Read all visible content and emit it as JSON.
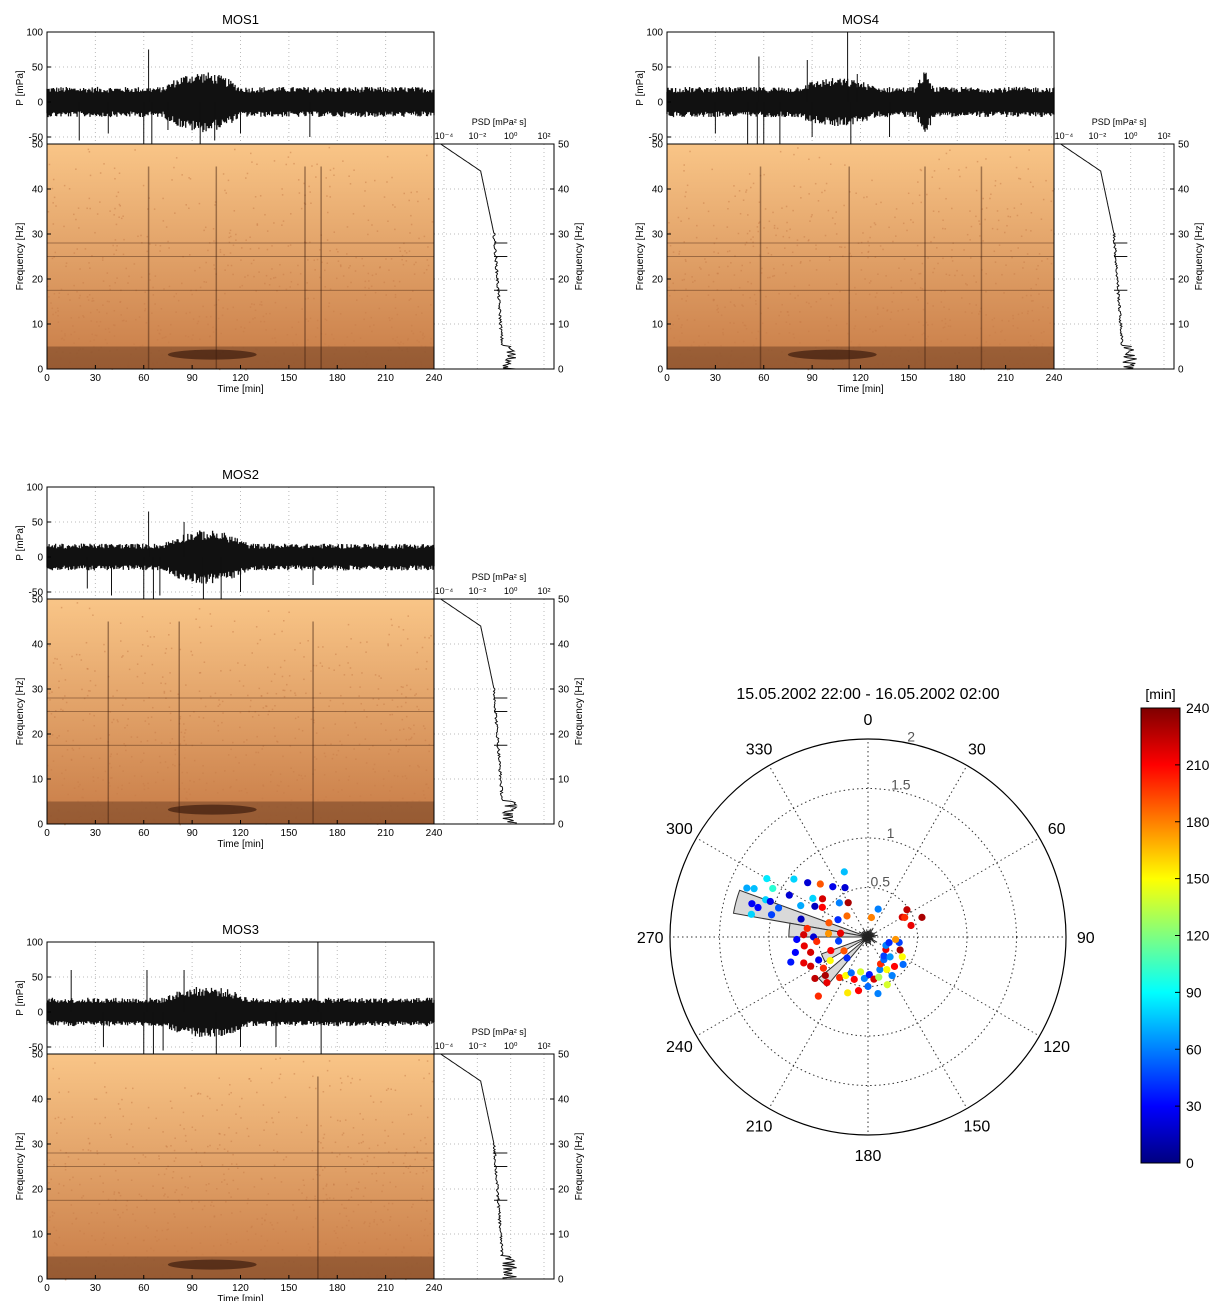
{
  "chart_data": [
    {
      "type": "line",
      "title": "MOS1",
      "waveform": {
        "ylabel": "P [mPa]",
        "ylim": [
          -60,
          100
        ],
        "yticks": [
          100,
          50,
          0,
          -50
        ],
        "amplitude": 18,
        "bursts": [
          [
            72,
            120,
            2.0
          ]
        ],
        "spikes": [
          [
            20,
            -55
          ],
          [
            38,
            -45
          ],
          [
            60,
            -90
          ],
          [
            63,
            75
          ],
          [
            65,
            -90
          ],
          [
            75,
            -40
          ],
          [
            95,
            -60
          ],
          [
            104,
            -55
          ],
          [
            120,
            -45
          ],
          [
            163,
            -50
          ]
        ]
      },
      "spectrogram": {
        "xlabel": "Time [min]",
        "ylabel": "Frequency [Hz]",
        "xlim": [
          0,
          240
        ],
        "ylim": [
          0,
          50
        ],
        "xticks": [
          0,
          30,
          60,
          90,
          120,
          150,
          180,
          210,
          240
        ],
        "yticks": [
          0,
          10,
          20,
          30,
          40,
          50
        ],
        "colors": [
          "#f9c587",
          "#c87c47",
          "#3d1d0e"
        ],
        "lines_hz": [
          28,
          25,
          17.5
        ],
        "vertical_min": [
          63,
          105,
          160,
          170
        ],
        "dark_band": [
          75,
          130
        ]
      },
      "psd": {
        "xlabel": "PSD [mPa² s]",
        "ylabel": "Frequency [Hz]",
        "xticks": [
          "10⁻⁴",
          "10⁻²",
          "10⁰",
          "10²"
        ],
        "yticks": [
          0,
          10,
          20,
          30,
          40,
          50
        ]
      }
    },
    {
      "type": "line",
      "title": "MOS4",
      "waveform": {
        "ylabel": "P [mPa]",
        "ylim": [
          -60,
          100
        ],
        "yticks": [
          100,
          50,
          0,
          -50
        ],
        "amplitude": 18,
        "bursts": [
          [
            80,
            130,
            1.6
          ],
          [
            155,
            165,
            2.0
          ]
        ],
        "spikes": [
          [
            30,
            -45
          ],
          [
            50,
            -80
          ],
          [
            56,
            -90
          ],
          [
            57,
            65
          ],
          [
            60,
            -85
          ],
          [
            70,
            -60
          ],
          [
            87,
            60
          ],
          [
            90,
            -50
          ],
          [
            112,
            100
          ],
          [
            114,
            -90
          ],
          [
            118,
            40
          ],
          [
            138,
            -50
          ],
          [
            160,
            40
          ]
        ]
      },
      "spectrogram": {
        "xlabel": "Time [min]",
        "ylabel": "Frequency [Hz]",
        "xlim": [
          0,
          240
        ],
        "ylim": [
          0,
          50
        ],
        "xticks": [
          0,
          30,
          60,
          90,
          120,
          150,
          180,
          210,
          240
        ],
        "yticks": [
          0,
          10,
          20,
          30,
          40,
          50
        ],
        "colors": [
          "#f9c587",
          "#c87c47",
          "#3d1d0e"
        ],
        "lines_hz": [
          28,
          25,
          17.5
        ],
        "vertical_min": [
          58,
          113,
          160,
          195
        ],
        "dark_band": [
          75,
          130
        ]
      },
      "psd": {
        "xlabel": "PSD [mPa² s]",
        "ylabel": "Frequency [Hz]",
        "xticks": [
          "10⁻⁴",
          "10⁻²",
          "10⁰",
          "10²"
        ],
        "yticks": [
          0,
          10,
          20,
          30,
          40,
          50
        ]
      }
    },
    {
      "type": "line",
      "title": "MOS2",
      "waveform": {
        "ylabel": "P [mPa]",
        "ylim": [
          -60,
          100
        ],
        "yticks": [
          100,
          50,
          0,
          -50
        ],
        "amplitude": 16,
        "bursts": [
          [
            72,
            125,
            2.0
          ]
        ],
        "spikes": [
          [
            25,
            -45
          ],
          [
            40,
            -55
          ],
          [
            60,
            -90
          ],
          [
            63,
            65
          ],
          [
            66,
            -90
          ],
          [
            70,
            -55
          ],
          [
            85,
            50
          ],
          [
            97,
            -60
          ],
          [
            108,
            -90
          ],
          [
            120,
            -50
          ],
          [
            165,
            -40
          ]
        ]
      },
      "spectrogram": {
        "xlabel": "Time [min]",
        "ylabel": "Frequency [Hz]",
        "xlim": [
          0,
          240
        ],
        "ylim": [
          0,
          50
        ],
        "xticks": [
          0,
          30,
          60,
          90,
          120,
          150,
          180,
          210,
          240
        ],
        "yticks": [
          0,
          10,
          20,
          30,
          40,
          50
        ],
        "colors": [
          "#f9c587",
          "#c87c47",
          "#3d1d0e"
        ],
        "lines_hz": [
          28,
          25,
          17.5
        ],
        "vertical_min": [
          38,
          82,
          165
        ],
        "dark_band": [
          75,
          130
        ]
      },
      "psd": {
        "xlabel": "PSD [mPa² s]",
        "ylabel": "Frequency [Hz]",
        "xticks": [
          "10⁻⁴",
          "10⁻²",
          "10⁰",
          "10²"
        ],
        "yticks": [
          0,
          10,
          20,
          30,
          40,
          50
        ]
      }
    },
    {
      "type": "line",
      "title": "MOS3",
      "waveform": {
        "ylabel": "P [mPa]",
        "ylim": [
          -60,
          100
        ],
        "yticks": [
          100,
          50,
          0,
          -50
        ],
        "amplitude": 17,
        "bursts": [
          [
            72,
            125,
            1.8
          ]
        ],
        "spikes": [
          [
            15,
            60
          ],
          [
            35,
            -50
          ],
          [
            60,
            -90
          ],
          [
            62,
            60
          ],
          [
            66,
            -90
          ],
          [
            72,
            -55
          ],
          [
            85,
            60
          ],
          [
            105,
            -60
          ],
          [
            120,
            -50
          ],
          [
            142,
            -50
          ],
          [
            168,
            100
          ],
          [
            170,
            -90
          ]
        ]
      },
      "spectrogram": {
        "xlabel": "Time [min]",
        "ylabel": "Frequency [Hz]",
        "xlim": [
          0,
          240
        ],
        "ylim": [
          0,
          50
        ],
        "xticks": [
          0,
          30,
          60,
          90,
          120,
          150,
          180,
          210,
          240
        ],
        "yticks": [
          0,
          10,
          20,
          30,
          40,
          50
        ],
        "colors": [
          "#f9c587",
          "#c87c47",
          "#3d1d0e"
        ],
        "lines_hz": [
          28,
          25,
          17.5
        ],
        "vertical_min": [
          168
        ],
        "dark_band": [
          75,
          130
        ]
      },
      "psd": {
        "xlabel": "PSD [mPa² s]",
        "ylabel": "Frequency [Hz]",
        "xticks": [
          "10⁻⁴",
          "10⁻²",
          "10⁰",
          "10²"
        ],
        "yticks": [
          0,
          10,
          20,
          30,
          40,
          50
        ]
      }
    },
    {
      "type": "scatter",
      "subtype": "polar",
      "title": "15.05.2002 22:00  -  16.05.2002 02:00",
      "angle_ticks": [
        "0",
        "30",
        "60",
        "90",
        "120",
        "150",
        "180",
        "210",
        "240",
        "270",
        "300",
        "330"
      ],
      "radial_ticks": [
        "0.5",
        "1",
        "1.5",
        "2"
      ],
      "rmax": 2,
      "colorbar": {
        "label": "[min]",
        "ticks": [
          "0",
          "30",
          "60",
          "90",
          "120",
          "150",
          "180",
          "210",
          "240"
        ],
        "range": [
          0,
          240
        ]
      },
      "rose_sectors": [
        {
          "theta": [
            280,
            290
          ],
          "r": 1.38
        },
        {
          "theta": [
            270,
            280
          ],
          "r": 0.8
        },
        {
          "theta": [
            240,
            250
          ],
          "r": 0.5
        },
        {
          "theta": [
            220,
            230
          ],
          "r": 0.65
        }
      ],
      "points": [
        {
          "theta": 290,
          "r": 1.1,
          "t": 80
        },
        {
          "theta": 293,
          "r": 1.25,
          "t": 75
        },
        {
          "theta": 290,
          "r": 1.05,
          "t": 25
        },
        {
          "theta": 285,
          "r": 1.15,
          "t": 30
        },
        {
          "theta": 286,
          "r": 1.22,
          "t": 28
        },
        {
          "theta": 281,
          "r": 1.2,
          "t": 80
        },
        {
          "theta": 283,
          "r": 1.0,
          "t": 45
        },
        {
          "theta": 295,
          "r": 0.75,
          "t": 70
        },
        {
          "theta": 298,
          "r": 0.9,
          "t": 20
        },
        {
          "theta": 300,
          "r": 0.62,
          "t": 15
        },
        {
          "theta": 305,
          "r": 0.68,
          "t": 80
        },
        {
          "theta": 310,
          "r": 0.6,
          "t": 220
        },
        {
          "theta": 303,
          "r": 0.55,
          "t": 210
        },
        {
          "theta": 290,
          "r": 0.42,
          "t": 190
        },
        {
          "theta": 285,
          "r": 0.7,
          "t": 15
        },
        {
          "theta": 278,
          "r": 0.62,
          "t": 200
        },
        {
          "theta": 275,
          "r": 0.4,
          "t": 175
        },
        {
          "theta": 300,
          "r": 0.35,
          "t": 40
        },
        {
          "theta": 320,
          "r": 0.45,
          "t": 60
        },
        {
          "theta": 330,
          "r": 0.4,
          "t": 230
        },
        {
          "theta": 315,
          "r": 0.3,
          "t": 185
        },
        {
          "theta": 270,
          "r": 0.55,
          "t": 20
        },
        {
          "theta": 265,
          "r": 0.52,
          "t": 200
        },
        {
          "theta": 262,
          "r": 0.65,
          "t": 215
        },
        {
          "theta": 258,
          "r": 0.75,
          "t": 30
        },
        {
          "theta": 255,
          "r": 0.6,
          "t": 220
        },
        {
          "theta": 250,
          "r": 0.4,
          "t": 210
        },
        {
          "theta": 245,
          "r": 0.55,
          "t": 25
        },
        {
          "theta": 243,
          "r": 0.65,
          "t": 220
        },
        {
          "theta": 238,
          "r": 0.45,
          "t": 150
        },
        {
          "theta": 235,
          "r": 0.55,
          "t": 200
        },
        {
          "theta": 228,
          "r": 0.58,
          "t": 230
        },
        {
          "theta": 222,
          "r": 0.62,
          "t": 215
        },
        {
          "theta": 215,
          "r": 0.5,
          "t": 200
        },
        {
          "theta": 210,
          "r": 0.45,
          "t": 150
        },
        {
          "theta": 205,
          "r": 0.4,
          "t": 55
        },
        {
          "theta": 198,
          "r": 0.45,
          "t": 210
        },
        {
          "theta": 192,
          "r": 0.36,
          "t": 140
        },
        {
          "theta": 185,
          "r": 0.42,
          "t": 60
        },
        {
          "theta": 178,
          "r": 0.38,
          "t": 35
        },
        {
          "theta": 172,
          "r": 0.43,
          "t": 220
        },
        {
          "theta": 165,
          "r": 0.42,
          "t": 130
        },
        {
          "theta": 160,
          "r": 0.35,
          "t": 60
        },
        {
          "theta": 155,
          "r": 0.3,
          "t": 200
        },
        {
          "theta": 150,
          "r": 0.38,
          "t": 150
        },
        {
          "theta": 145,
          "r": 0.28,
          "t": 55
        },
        {
          "theta": 140,
          "r": 0.25,
          "t": 45
        },
        {
          "theta": 132,
          "r": 0.3,
          "t": 65
        },
        {
          "theta": 125,
          "r": 0.22,
          "t": 215
        },
        {
          "theta": 115,
          "r": 0.2,
          "t": 60
        },
        {
          "theta": 105,
          "r": 0.22,
          "t": 40
        },
        {
          "theta": 60,
          "r": 0.4,
          "t": 220
        },
        {
          "theta": 55,
          "r": 0.48,
          "t": 225
        },
        {
          "theta": 62,
          "r": 0.42,
          "t": 200
        },
        {
          "theta": 70,
          "r": 0.58,
          "t": 230
        },
        {
          "theta": 75,
          "r": 0.45,
          "t": 215
        },
        {
          "theta": 20,
          "r": 0.3,
          "t": 60
        },
        {
          "theta": 10,
          "r": 0.2,
          "t": 180
        },
        {
          "theta": 335,
          "r": 0.55,
          "t": 20
        },
        {
          "theta": 340,
          "r": 0.7,
          "t": 75
        },
        {
          "theta": 325,
          "r": 0.62,
          "t": 25
        },
        {
          "theta": 318,
          "r": 0.72,
          "t": 190
        },
        {
          "theta": 312,
          "r": 0.82,
          "t": 20
        },
        {
          "theta": 308,
          "r": 0.95,
          "t": 80
        },
        {
          "theta": 297,
          "r": 1.08,
          "t": 100
        },
        {
          "theta": 288,
          "r": 0.95,
          "t": 50
        },
        {
          "theta": 272,
          "r": 0.65,
          "t": 220
        },
        {
          "theta": 268,
          "r": 0.72,
          "t": 30
        },
        {
          "theta": 252,
          "r": 0.82,
          "t": 35
        },
        {
          "theta": 248,
          "r": 0.7,
          "t": 215
        },
        {
          "theta": 232,
          "r": 0.68,
          "t": 225
        },
        {
          "theta": 220,
          "r": 0.78,
          "t": 200
        },
        {
          "theta": 200,
          "r": 0.6,
          "t": 155
        },
        {
          "theta": 190,
          "r": 0.55,
          "t": 210
        },
        {
          "theta": 180,
          "r": 0.5,
          "t": 55
        },
        {
          "theta": 170,
          "r": 0.58,
          "t": 60
        },
        {
          "theta": 158,
          "r": 0.52,
          "t": 140
        },
        {
          "theta": 148,
          "r": 0.46,
          "t": 60
        },
        {
          "theta": 138,
          "r": 0.4,
          "t": 210
        },
        {
          "theta": 128,
          "r": 0.45,
          "t": 55
        },
        {
          "theta": 120,
          "r": 0.4,
          "t": 150
        },
        {
          "theta": 112,
          "r": 0.35,
          "t": 230
        },
        {
          "theta": 100,
          "r": 0.32,
          "t": 45
        },
        {
          "theta": 95,
          "r": 0.28,
          "t": 175
        },
        {
          "theta": 262,
          "r": 0.3,
          "t": 45
        },
        {
          "theta": 278,
          "r": 0.28,
          "t": 215
        },
        {
          "theta": 240,
          "r": 0.28,
          "t": 190
        },
        {
          "theta": 225,
          "r": 0.3,
          "t": 40
        },
        {
          "theta": 300,
          "r": 1.18,
          "t": 85
        },
        {
          "theta": 292,
          "r": 1.32,
          "t": 70
        }
      ]
    }
  ]
}
